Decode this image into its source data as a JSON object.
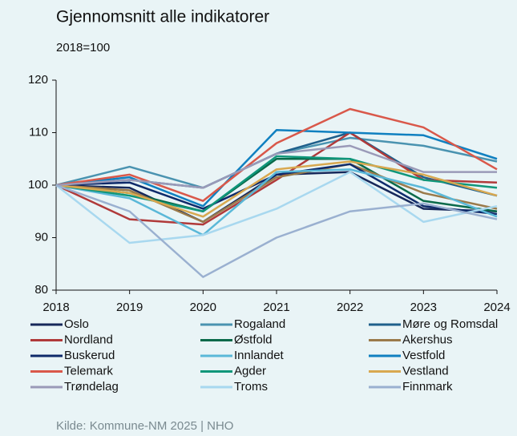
{
  "chart_data": {
    "type": "line",
    "title": "Gjennomsnitt alle indikatorer",
    "subtitle": "2018=100",
    "source": "Kilde: Kommune-NM 2025 | NHO",
    "categories": [
      "2018",
      "2019",
      "2020",
      "2021",
      "2022",
      "2023",
      "2024"
    ],
    "ylim": [
      80,
      120
    ],
    "yticks": [
      80,
      90,
      100,
      110,
      120
    ],
    "series": [
      {
        "name": "Oslo",
        "color": "#16285a",
        "values": [
          100,
          99.5,
          93,
          102,
          102.5,
          95.5,
          95
        ]
      },
      {
        "name": "Rogaland",
        "color": "#4a93b0",
        "values": [
          100,
          103.5,
          99.5,
          106,
          109,
          107.5,
          104.5
        ]
      },
      {
        "name": "Møre og Romsdal",
        "color": "#1f5f8b",
        "values": [
          100,
          101,
          99.5,
          106,
          110,
          101.5,
          98
        ]
      },
      {
        "name": "Nordland",
        "color": "#b03a3a",
        "values": [
          100,
          93.5,
          92.5,
          101,
          110,
          101,
          100.5
        ]
      },
      {
        "name": "Østfold",
        "color": "#0a6a4a",
        "values": [
          100,
          98.5,
          95,
          105,
          105,
          97,
          95
        ]
      },
      {
        "name": "Akershus",
        "color": "#9a7a4a",
        "values": [
          100,
          99,
          93,
          101.5,
          104,
          98.5,
          95.5
        ]
      },
      {
        "name": "Buskerud",
        "color": "#0e2a6a",
        "values": [
          100,
          100.5,
          95.5,
          102,
          104,
          96,
          94.5
        ]
      },
      {
        "name": "Innlandet",
        "color": "#5ab8d8",
        "values": [
          100,
          97.5,
          90.5,
          102.5,
          103,
          99.5,
          94
        ]
      },
      {
        "name": "Vestfold",
        "color": "#1080c0",
        "values": [
          100,
          101.5,
          96,
          110.5,
          110,
          109.5,
          105
        ]
      },
      {
        "name": "Telemark",
        "color": "#d9584a",
        "values": [
          100,
          102,
          97,
          108,
          114.5,
          111,
          103
        ]
      },
      {
        "name": "Agder",
        "color": "#10967a",
        "values": [
          100,
          98,
          95,
          105.5,
          105,
          101,
          99.5
        ]
      },
      {
        "name": "Vestland",
        "color": "#d8a850",
        "values": [
          100,
          98.5,
          94,
          103,
          104.5,
          102,
          98
        ]
      },
      {
        "name": "Trøndelag",
        "color": "#9a9ab8",
        "values": [
          100,
          101,
          99.5,
          106,
          107.5,
          102.5,
          102.5
        ]
      },
      {
        "name": "Troms",
        "color": "#a8d8ef",
        "values": [
          100,
          89,
          90.5,
          95.5,
          102.5,
          93,
          96
        ]
      },
      {
        "name": "Finnmark",
        "color": "#9ab0d0",
        "values": [
          100,
          95,
          82.5,
          90,
          95,
          96.5,
          93.5
        ]
      }
    ]
  }
}
